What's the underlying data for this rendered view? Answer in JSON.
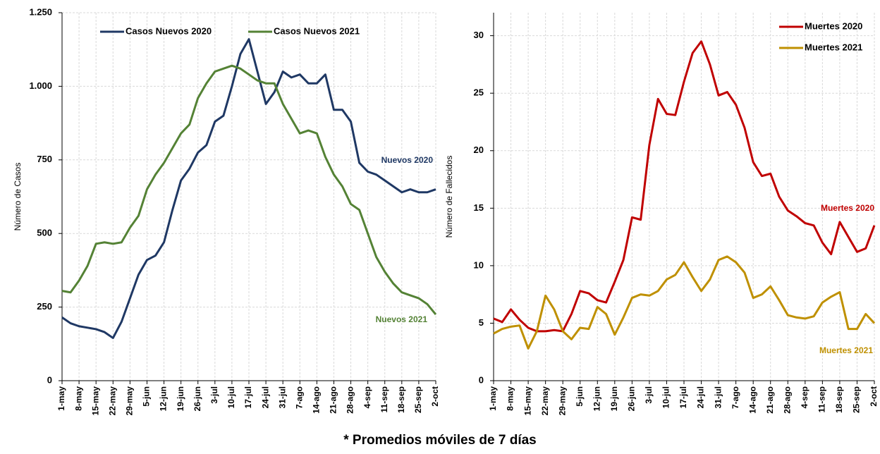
{
  "chart_data": [
    {
      "type": "line",
      "ylabel": "Número de Casos",
      "legend": "top",
      "categories": [
        "1-may",
        null,
        "8-may",
        null,
        "15-may",
        null,
        "22-may",
        null,
        "29-may",
        null,
        "5-jun",
        null,
        "12-jun",
        null,
        "19-jun",
        null,
        "26-jun",
        null,
        "3-jul",
        null,
        "10-jul",
        null,
        "17-jul",
        null,
        "24-jul",
        null,
        "31-jul",
        null,
        "7-ago",
        null,
        "14-ago",
        null,
        "21-ago",
        null,
        "28-ago",
        null,
        "4-sep",
        null,
        "11-sep",
        null,
        "18-sep",
        null,
        "25-sep",
        null,
        "2-oct"
      ],
      "ylim": [
        0,
        1250
      ],
      "yticks": [
        0,
        250,
        500,
        750,
        {
          "value": 1000,
          "label": "1.000"
        },
        {
          "value": 1250,
          "label": "1.250"
        }
      ],
      "grid": true,
      "series": [
        {
          "name": "Casos Nuevos 2020",
          "color": "#1f3864",
          "label": "Nuevos 2020",
          "values": [
            215,
            195,
            185,
            180,
            175,
            165,
            145,
            200,
            280,
            360,
            410,
            425,
            470,
            580,
            680,
            720,
            775,
            800,
            880,
            900,
            1000,
            1110,
            1160,
            1050,
            940,
            980,
            1050,
            1030,
            1040,
            1010,
            1010,
            1040,
            920,
            920,
            880,
            740,
            710,
            700,
            680,
            660,
            640,
            650,
            640,
            640,
            650
          ]
        },
        {
          "name": "Casos Nuevos 2021",
          "color": "#548235",
          "label": "Nuevos 2021",
          "values": [
            305,
            300,
            340,
            390,
            465,
            470,
            465,
            470,
            520,
            560,
            650,
            700,
            740,
            790,
            840,
            870,
            960,
            1010,
            1050,
            1060,
            1070,
            1060,
            1040,
            1020,
            1010,
            1010,
            940,
            890,
            840,
            850,
            840,
            760,
            700,
            660,
            600,
            580,
            500,
            420,
            370,
            330,
            300,
            290,
            280,
            260,
            225
          ]
        }
      ]
    },
    {
      "type": "line",
      "ylabel": "Número de Fallecidos",
      "legend": "top-right",
      "categories": [
        "1-may",
        null,
        "8-may",
        null,
        "15-may",
        null,
        "22-may",
        null,
        "29-may",
        null,
        "5-jun",
        null,
        "12-jun",
        null,
        "19-jun",
        null,
        "26-jun",
        null,
        "3-jul",
        null,
        "10-jul",
        null,
        "17-jul",
        null,
        "24-jul",
        null,
        "31-jul",
        null,
        "7-ago",
        null,
        "14-ago",
        null,
        "21-ago",
        null,
        "28-ago",
        null,
        "4-sep",
        null,
        "11-sep",
        null,
        "18-sep",
        null,
        "25-sep",
        null,
        "2-oct"
      ],
      "ylim": [
        0,
        32
      ],
      "yticks": [
        0,
        5,
        10,
        15,
        20,
        25,
        30
      ],
      "grid": true,
      "series": [
        {
          "name": "Muertes 2020",
          "color": "#c00000",
          "label": "Muertes 2020",
          "values": [
            5.4,
            5.1,
            6.2,
            5.3,
            4.6,
            4.3,
            4.3,
            4.4,
            4.3,
            5.8,
            7.8,
            7.6,
            7.0,
            6.8,
            8.6,
            10.5,
            14.2,
            14.0,
            20.5,
            24.5,
            23.2,
            23.1,
            26,
            28.5,
            29.5,
            27.5,
            24.8,
            25.1,
            24,
            22,
            19,
            17.8,
            18,
            16,
            14.8,
            14.3,
            13.7,
            13.5,
            12,
            11,
            13.8,
            12.5,
            11.2,
            11.5,
            13.5
          ]
        },
        {
          "name": "Muertes 2021",
          "color": "#bf9000",
          "label": "Muertes 2021",
          "values": [
            4.1,
            4.5,
            4.7,
            4.8,
            2.8,
            4.3,
            7.4,
            6.2,
            4.3,
            3.6,
            4.6,
            4.5,
            6.4,
            5.8,
            4.0,
            5.5,
            7.2,
            7.5,
            7.4,
            7.8,
            8.8,
            9.2,
            10.3,
            9.0,
            7.8,
            8.8,
            10.5,
            10.8,
            10.3,
            9.4,
            7.2,
            7.5,
            8.2,
            7.0,
            5.7,
            5.5,
            5.4,
            5.6,
            6.8,
            7.3,
            7.7,
            4.5,
            4.5,
            5.8,
            5.0
          ]
        }
      ]
    }
  ],
  "footnote": "* Promedios móviles de 7 días"
}
